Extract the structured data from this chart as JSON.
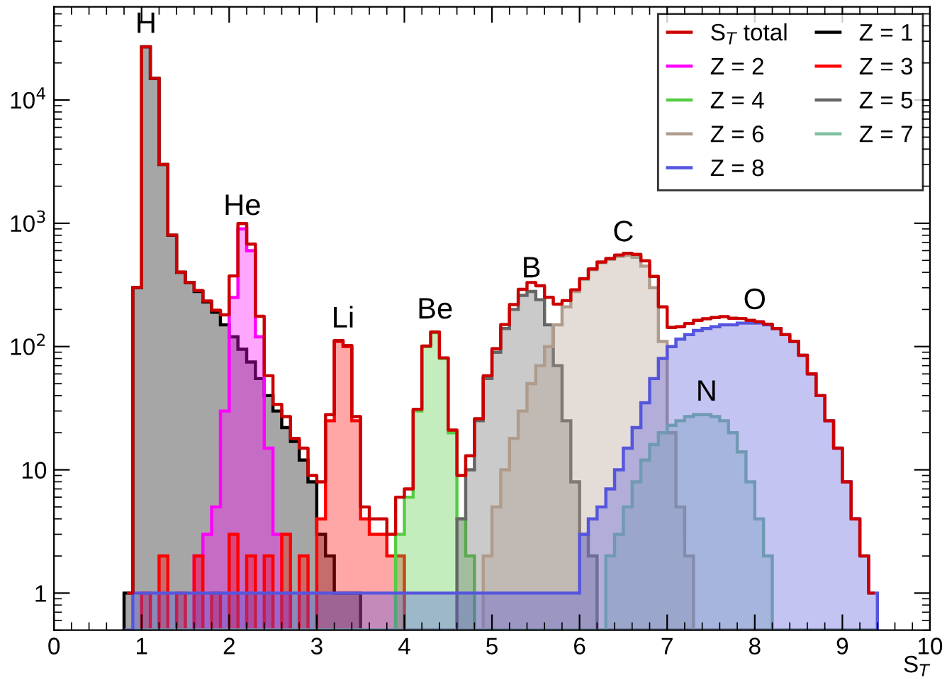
{
  "chart_data": {
    "type": "histogram",
    "xlabel": "S$_{T}$",
    "log": "y",
    "legend": "top right",
    "grid": false,
    "bins": [
      0.8,
      0.9,
      1.0,
      1.1,
      1.2,
      1.3,
      1.4,
      1.5,
      1.6,
      1.7,
      1.8,
      1.9,
      2.0,
      2.1,
      2.2,
      2.3,
      2.4,
      2.5,
      2.6,
      2.7,
      2.8,
      2.9,
      3.0,
      3.1,
      3.2,
      3.3,
      3.4,
      3.5,
      3.6,
      3.7,
      3.8,
      3.9,
      4.0,
      4.1,
      4.2,
      4.3,
      4.4,
      4.5,
      4.6,
      4.7,
      4.8,
      4.9,
      5.0,
      5.1,
      5.2,
      5.3,
      5.4,
      5.5,
      5.6,
      5.7,
      5.8,
      5.9,
      6.0,
      6.1,
      6.2,
      6.3,
      6.4,
      6.5,
      6.6,
      6.7,
      6.8,
      6.9,
      7.0,
      7.1,
      7.2,
      7.3,
      7.4,
      7.5,
      7.6,
      7.7,
      7.8,
      7.9,
      8.0,
      8.1,
      8.2,
      8.3,
      8.4,
      8.5,
      8.6,
      8.7,
      8.8,
      8.9,
      9.0,
      9.1,
      9.2,
      9.3,
      9.4
    ],
    "series": [
      {
        "name": "S$_{T}$ total",
        "type": "step",
        "color": "#cc0000",
        "x": [
          0.85,
          0.95,
          1.05,
          1.15,
          1.25,
          1.35,
          1.45,
          1.55,
          1.65,
          1.75,
          1.85,
          1.95,
          2.05,
          2.15,
          2.25,
          2.35,
          2.45,
          2.55,
          2.65,
          2.75,
          2.85,
          2.95,
          3.05,
          3.15,
          3.25,
          3.35,
          3.45,
          3.55,
          3.65,
          3.75,
          3.85,
          3.95,
          4.05,
          4.15,
          4.25,
          4.35,
          4.45,
          4.55,
          4.65,
          4.75,
          4.85,
          4.95,
          5.05,
          5.15,
          5.25,
          5.35,
          5.45,
          5.55,
          5.65,
          5.75,
          5.85,
          5.95,
          6.05,
          6.15,
          6.25,
          6.35,
          6.45,
          6.55,
          6.65,
          6.75,
          6.85,
          6.95,
          7.05,
          7.15,
          7.25,
          7.35,
          7.45,
          7.55,
          7.65,
          7.75,
          7.85,
          7.95,
          8.05,
          8.15,
          8.25,
          8.35,
          8.45,
          8.55,
          8.65,
          8.75,
          8.85,
          8.95,
          9.05,
          9.15,
          9.25,
          9.35
        ],
        "values": [
          1,
          301,
          27002,
          15001,
          3003,
          801,
          402,
          331,
          285,
          234,
          197,
          181,
          374,
          996,
          678,
          176,
          58,
          34,
          27,
          18,
          15,
          9,
          8,
          28,
          112,
          102,
          27,
          5,
          4,
          4,
          3,
          6,
          7,
          31,
          101,
          131,
          81,
          21,
          9,
          13,
          26,
          58,
          96,
          151,
          219,
          291,
          331,
          311,
          251,
          221,
          236,
          289,
          356,
          426,
          485,
          519,
          553,
          570,
          560,
          497,
          371,
          210,
          143,
          145,
          154,
          163,
          168,
          172,
          175,
          170,
          169,
          163,
          159,
          152,
          140,
          125,
          110,
          85,
          60,
          40,
          25,
          15,
          8,
          4,
          2,
          1
        ]
      },
      {
        "name": "Z = 1",
        "color": "#000000",
        "values": [
          1,
          300,
          27000,
          15000,
          3000,
          800,
          400,
          330,
          280,
          230,
          190,
          150,
          120,
          95,
          75,
          55,
          40,
          30,
          22,
          17,
          12,
          8,
          3,
          2,
          1,
          1,
          1,
          null,
          null,
          null,
          null,
          null,
          null,
          null,
          null,
          null,
          null,
          null,
          null,
          null,
          null,
          null,
          null,
          null,
          null,
          null,
          null,
          null,
          null,
          null,
          null,
          null,
          null,
          null,
          null,
          null,
          null,
          null,
          null,
          null,
          null,
          null,
          null,
          null,
          null,
          null,
          null,
          null,
          null,
          null,
          null,
          null,
          null,
          null,
          null,
          null,
          null,
          null,
          null,
          null,
          null,
          null,
          null,
          null,
          null,
          null
        ]
      },
      {
        "name": "Z = 2",
        "color": "#ff00ff",
        "values": [
          null,
          null,
          null,
          null,
          null,
          null,
          null,
          null,
          2,
          3,
          5,
          30,
          250,
          900,
          600,
          120,
          15,
          3,
          1,
          null,
          null,
          null,
          null,
          null,
          null,
          null,
          null,
          null,
          null,
          null,
          null,
          null,
          null,
          null,
          null,
          null,
          null,
          null,
          null,
          null,
          null,
          null,
          null,
          null,
          null,
          null,
          null,
          null,
          null,
          null,
          null,
          null,
          null,
          null,
          null,
          null,
          null,
          null,
          null,
          null,
          null,
          null,
          null,
          null,
          null,
          null,
          null,
          null,
          null,
          null,
          null,
          null,
          null,
          null,
          null,
          null,
          null,
          null,
          null,
          null,
          null,
          null,
          null,
          null,
          null,
          null
        ]
      },
      {
        "name": "Z = 3",
        "color": "#ff0000",
        "values": [
          null,
          null,
          1,
          null,
          2,
          null,
          1,
          null,
          2,
          null,
          1,
          null,
          3,
          null,
          2,
          null,
          2,
          null,
          3,
          null,
          2,
          null,
          4,
          25,
          110,
          100,
          25,
          4,
          3,
          3,
          2,
          2,
          null,
          null,
          null,
          null,
          null,
          null,
          null,
          null,
          null,
          null,
          null,
          null,
          null,
          null,
          null,
          null,
          null,
          null,
          null,
          null,
          null,
          null,
          null,
          null,
          null,
          null,
          null,
          null,
          null,
          null,
          null,
          null,
          null,
          null,
          null,
          null,
          null,
          null,
          null,
          null,
          null,
          null,
          null,
          null,
          null,
          null,
          null,
          null,
          null,
          null,
          null,
          null,
          null,
          null
        ]
      },
      {
        "name": "Z = 4",
        "color": "#55cc44",
        "values": [
          null,
          null,
          null,
          null,
          null,
          null,
          null,
          null,
          null,
          null,
          null,
          null,
          null,
          null,
          null,
          null,
          null,
          null,
          null,
          null,
          null,
          null,
          null,
          null,
          null,
          null,
          null,
          null,
          null,
          null,
          null,
          3,
          6,
          30,
          100,
          130,
          80,
          20,
          4,
          2,
          null,
          null,
          null,
          null,
          null,
          null,
          null,
          null,
          null,
          null,
          null,
          null,
          null,
          null,
          null,
          null,
          null,
          null,
          null,
          null,
          null,
          null,
          null,
          null,
          null,
          null,
          null,
          null,
          null,
          null,
          null,
          null,
          null,
          null,
          null,
          null,
          null,
          null,
          null,
          null,
          null,
          null,
          null,
          null,
          null,
          null
        ]
      },
      {
        "name": "Z = 5",
        "color": "#666666",
        "values": [
          null,
          null,
          null,
          null,
          null,
          null,
          null,
          null,
          null,
          null,
          null,
          null,
          null,
          null,
          null,
          null,
          null,
          null,
          null,
          null,
          null,
          null,
          null,
          null,
          null,
          null,
          null,
          null,
          null,
          null,
          null,
          null,
          null,
          null,
          null,
          null,
          null,
          null,
          4,
          10,
          25,
          55,
          90,
          140,
          200,
          260,
          280,
          240,
          150,
          70,
          25,
          8,
          3,
          2,
          null,
          null,
          null,
          null,
          null,
          null,
          null,
          null,
          null,
          null,
          null,
          null,
          null,
          null,
          null,
          null,
          null,
          null,
          null,
          null,
          null,
          null,
          null,
          null,
          null,
          null,
          null,
          null,
          null,
          null,
          null,
          null
        ]
      },
      {
        "name": "Z = 6",
        "color": "#b09c8c",
        "values": [
          null,
          null,
          null,
          null,
          null,
          null,
          null,
          null,
          null,
          null,
          null,
          null,
          null,
          null,
          null,
          null,
          null,
          null,
          null,
          null,
          null,
          null,
          null,
          null,
          null,
          null,
          null,
          null,
          null,
          null,
          null,
          null,
          null,
          null,
          null,
          null,
          null,
          null,
          null,
          null,
          null,
          2,
          5,
          10,
          18,
          30,
          50,
          70,
          100,
          150,
          210,
          280,
          350,
          420,
          480,
          510,
          540,
          550,
          530,
          450,
          300,
          110,
          20,
          5,
          2,
          null,
          null,
          null,
          null,
          null,
          null,
          null,
          null,
          null,
          null,
          null,
          null,
          null,
          null,
          null,
          null,
          null,
          null,
          null,
          null,
          null
        ]
      },
      {
        "name": "Z = 7",
        "color": "#7fbf9f",
        "values": [
          null,
          null,
          null,
          null,
          null,
          null,
          null,
          null,
          null,
          null,
          null,
          null,
          null,
          null,
          null,
          null,
          null,
          null,
          null,
          null,
          null,
          null,
          null,
          null,
          null,
          null,
          null,
          null,
          null,
          null,
          null,
          null,
          null,
          null,
          null,
          null,
          null,
          null,
          null,
          null,
          null,
          null,
          null,
          null,
          null,
          null,
          null,
          null,
          null,
          null,
          null,
          null,
          null,
          null,
          null,
          2,
          3,
          5,
          8,
          12,
          16,
          20,
          23,
          25,
          27,
          28,
          28,
          27,
          25,
          20,
          14,
          8,
          4,
          2,
          null,
          null,
          null,
          null,
          null,
          null,
          null,
          null,
          null,
          null,
          null,
          null
        ]
      },
      {
        "name": "Z = 8",
        "color": "#5555dd",
        "values": [
          null,
          1,
          1,
          1,
          1,
          1,
          1,
          1,
          1,
          1,
          1,
          1,
          1,
          1,
          1,
          1,
          1,
          1,
          1,
          1,
          1,
          1,
          1,
          1,
          1,
          1,
          1,
          1,
          1,
          1,
          1,
          1,
          1,
          1,
          1,
          1,
          1,
          1,
          1,
          1,
          1,
          1,
          1,
          1,
          1,
          1,
          1,
          1,
          1,
          1,
          1,
          1,
          3,
          4,
          5,
          7,
          10,
          15,
          22,
          35,
          55,
          80,
          100,
          115,
          125,
          135,
          140,
          145,
          150,
          150,
          155,
          155,
          155,
          150,
          140,
          125,
          110,
          85,
          60,
          40,
          25,
          15,
          8,
          4,
          2,
          1
        ]
      }
    ],
    "xlim": [
      0,
      10
    ],
    "xticks": [
      0,
      1,
      2,
      3,
      4,
      5,
      6,
      7,
      8,
      9,
      10
    ],
    "ylim": [
      0.5,
      57000
    ],
    "yticks": [
      1,
      10,
      {
        "value": 100,
        "label": "10$^{2}$"
      },
      {
        "value": 1000,
        "label": "10$^{3}$"
      },
      {
        "value": 10000,
        "label": "10$^{4}$"
      }
    ],
    "annotations": [
      {
        "text": "H",
        "x": 1.05,
        "y": 27000
      },
      {
        "text": "He",
        "x": 2.15,
        "y": 900
      },
      {
        "text": "Li",
        "x": 3.3,
        "y": 110
      },
      {
        "text": "Be",
        "x": 4.35,
        "y": 130
      },
      {
        "text": "B",
        "x": 5.45,
        "y": 280
      },
      {
        "text": "C",
        "x": 6.5,
        "y": 550
      },
      {
        "text": "N",
        "x": 7.45,
        "y": 28
      },
      {
        "text": "O",
        "x": 8.0,
        "y": 155
      }
    ]
  }
}
